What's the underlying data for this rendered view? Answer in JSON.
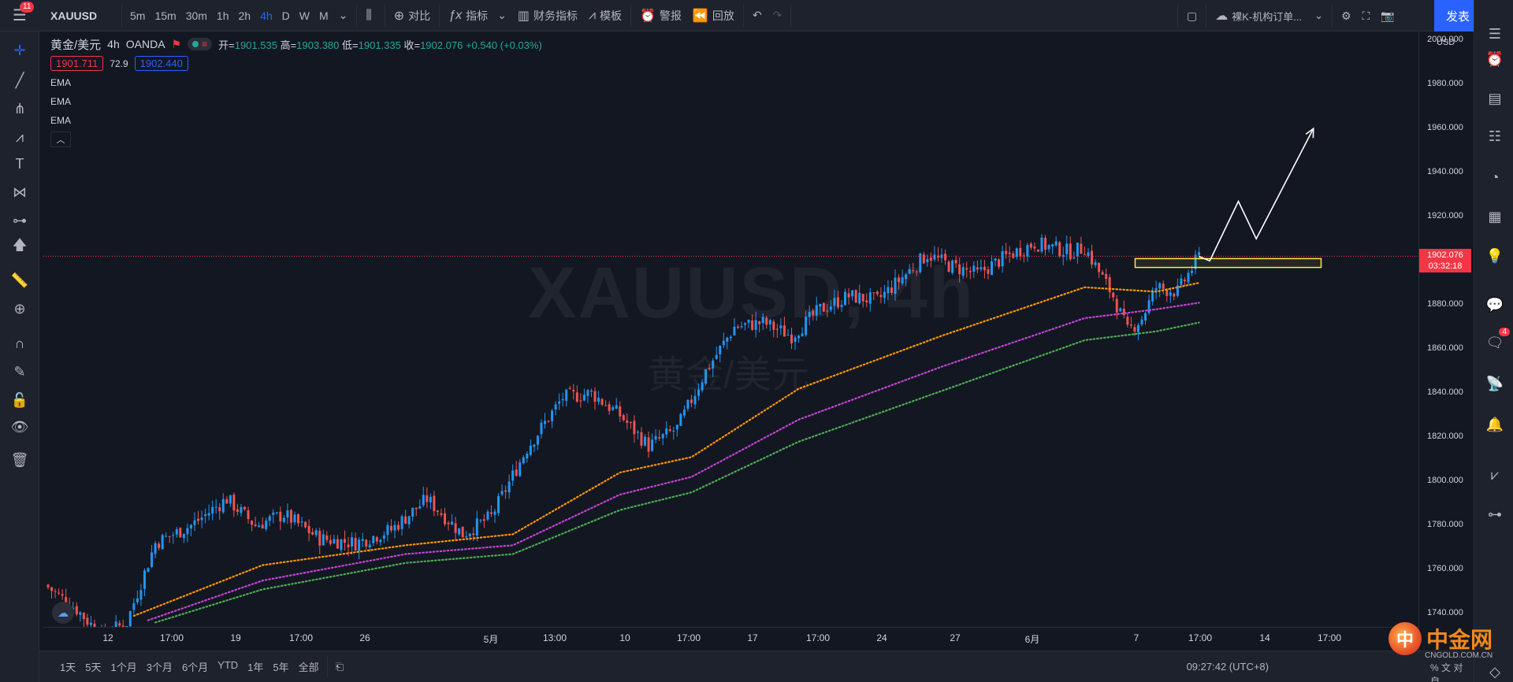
{
  "top_bar": {
    "menu_badge": "11",
    "symbol": "XAUUSD",
    "intervals": [
      "5m",
      "15m",
      "30m",
      "1h",
      "2h",
      "4h",
      "D",
      "W",
      "M"
    ],
    "active_interval": "4h",
    "compare_label": "对比",
    "indicators_label": "指标",
    "financials_label": "财务指标",
    "templates_label": "模板",
    "alert_label": "警报",
    "replay_label": "回放",
    "template_select": "裸K-机构订单...",
    "publish_label": "发表"
  },
  "legend": {
    "symbol_full": "黄金/美元",
    "interval": "4h",
    "broker": "OANDA",
    "open_key": "开=",
    "open": "1901.535",
    "high_key": "高=",
    "high": "1903.380",
    "low_key": "低=",
    "low": "1901.335",
    "close_key": "收=",
    "close": "1902.076",
    "change": "+0.540 (+0.03%)",
    "bid": "1901.711",
    "spread": "72.9",
    "ask": "1902.440",
    "ema_labels": [
      "EMA",
      "EMA",
      "EMA"
    ]
  },
  "watermark": {
    "line1": "XAUUSD, 4h",
    "line2": "黄金/美元"
  },
  "price_axis": {
    "currency": "USD",
    "labels": [
      "2000.000",
      "1980.000",
      "1960.000",
      "1940.000",
      "1920.000",
      "1900.000",
      "1880.000",
      "1860.000",
      "1840.000",
      "1820.000",
      "1800.000",
      "1780.000",
      "1760.000",
      "1740.000"
    ],
    "last_price": "1902.076",
    "countdown": "03:32:18"
  },
  "time_axis": {
    "labels": [
      "12",
      "17:00",
      "19",
      "17:00",
      "26",
      "5月",
      "13:00",
      "10",
      "17:00",
      "17",
      "17:00",
      "24",
      "27",
      "6月",
      "7",
      "17:00",
      "14",
      "17:00"
    ]
  },
  "bottom_bar": {
    "ranges": [
      "1天",
      "5天",
      "1个月",
      "3个月",
      "6个月",
      "YTD",
      "1年",
      "5年",
      "全部"
    ],
    "clock": "09:27:42 (UTC+8)",
    "tail": "% 文 对 自"
  },
  "brand": {
    "mark": "中",
    "name": "中金网",
    "sub": "CNGOLD.COM.CN"
  },
  "right_bar": {
    "badge": "4"
  },
  "colors": {
    "up": "#2196f3",
    "down": "#ef5350",
    "ema_fast": "#ff9800",
    "ema_mid": "#c844d8",
    "ema_slow": "#4caf50",
    "zone": "#ffeb3b",
    "last_price": "#f23645"
  },
  "chart_data": {
    "type": "candlestick",
    "title": "XAUUSD, 4h",
    "ylabel": "USD",
    "ylim": [
      1734,
      2004
    ],
    "x_ticks": [
      "12",
      "17:00",
      "19",
      "17:00",
      "26",
      "5月",
      "13:00",
      "10",
      "17:00",
      "17",
      "17:00",
      "24",
      "27",
      "6月",
      "7",
      "17:00",
      "14",
      "17:00"
    ],
    "close_anchors": [
      {
        "i": 0,
        "c": 1752
      },
      {
        "i": 8,
        "c": 1742
      },
      {
        "i": 15,
        "c": 1730
      },
      {
        "i": 22,
        "c": 1736
      },
      {
        "i": 30,
        "c": 1772
      },
      {
        "i": 40,
        "c": 1780
      },
      {
        "i": 50,
        "c": 1792
      },
      {
        "i": 58,
        "c": 1780
      },
      {
        "i": 66,
        "c": 1785
      },
      {
        "i": 76,
        "c": 1774
      },
      {
        "i": 86,
        "c": 1772
      },
      {
        "i": 96,
        "c": 1778
      },
      {
        "i": 106,
        "c": 1792
      },
      {
        "i": 116,
        "c": 1776
      },
      {
        "i": 124,
        "c": 1784
      },
      {
        "i": 134,
        "c": 1815
      },
      {
        "i": 144,
        "c": 1838
      },
      {
        "i": 152,
        "c": 1840
      },
      {
        "i": 160,
        "c": 1830
      },
      {
        "i": 168,
        "c": 1816
      },
      {
        "i": 176,
        "c": 1824
      },
      {
        "i": 184,
        "c": 1850
      },
      {
        "i": 192,
        "c": 1870
      },
      {
        "i": 200,
        "c": 1872
      },
      {
        "i": 208,
        "c": 1866
      },
      {
        "i": 216,
        "c": 1878
      },
      {
        "i": 224,
        "c": 1884
      },
      {
        "i": 232,
        "c": 1882
      },
      {
        "i": 240,
        "c": 1894
      },
      {
        "i": 246,
        "c": 1903
      },
      {
        "i": 252,
        "c": 1898
      },
      {
        "i": 260,
        "c": 1894
      },
      {
        "i": 268,
        "c": 1902
      },
      {
        "i": 276,
        "c": 1908
      },
      {
        "i": 286,
        "c": 1904
      },
      {
        "i": 290,
        "c": 1906
      },
      {
        "i": 298,
        "c": 1884
      },
      {
        "i": 302,
        "c": 1868
      },
      {
        "i": 306,
        "c": 1874
      },
      {
        "i": 310,
        "c": 1888
      },
      {
        "i": 316,
        "c": 1886
      },
      {
        "i": 322,
        "c": 1902
      }
    ],
    "series": [
      {
        "name": "EMA",
        "anchors": [
          {
            "i": 24,
            "c": 1739
          },
          {
            "i": 60,
            "c": 1762
          },
          {
            "i": 100,
            "c": 1771
          },
          {
            "i": 130,
            "c": 1776
          },
          {
            "i": 160,
            "c": 1804
          },
          {
            "i": 180,
            "c": 1811
          },
          {
            "i": 210,
            "c": 1842
          },
          {
            "i": 250,
            "c": 1866
          },
          {
            "i": 290,
            "c": 1888
          },
          {
            "i": 310,
            "c": 1886
          },
          {
            "i": 322,
            "c": 1890
          }
        ]
      },
      {
        "name": "EMA",
        "anchors": [
          {
            "i": 28,
            "c": 1737
          },
          {
            "i": 60,
            "c": 1755
          },
          {
            "i": 100,
            "c": 1767
          },
          {
            "i": 130,
            "c": 1771
          },
          {
            "i": 160,
            "c": 1794
          },
          {
            "i": 180,
            "c": 1802
          },
          {
            "i": 210,
            "c": 1828
          },
          {
            "i": 250,
            "c": 1852
          },
          {
            "i": 290,
            "c": 1874
          },
          {
            "i": 310,
            "c": 1878
          },
          {
            "i": 322,
            "c": 1881
          }
        ]
      },
      {
        "name": "EMA",
        "anchors": [
          {
            "i": 30,
            "c": 1736
          },
          {
            "i": 60,
            "c": 1751
          },
          {
            "i": 100,
            "c": 1763
          },
          {
            "i": 130,
            "c": 1767
          },
          {
            "i": 160,
            "c": 1787
          },
          {
            "i": 180,
            "c": 1795
          },
          {
            "i": 210,
            "c": 1818
          },
          {
            "i": 250,
            "c": 1841
          },
          {
            "i": 290,
            "c": 1864
          },
          {
            "i": 310,
            "c": 1868
          },
          {
            "i": 322,
            "c": 1872
          }
        ]
      }
    ],
    "last_price": 1902.076,
    "annotations": {
      "zone": {
        "from": 1897,
        "to": 1901
      },
      "arrow_path": [
        {
          "i": 322,
          "c": 1902
        },
        {
          "i": 325,
          "c": 1900
        },
        {
          "i": 333,
          "c": 1927
        },
        {
          "i": 338,
          "c": 1910
        },
        {
          "i": 354,
          "c": 1960
        }
      ]
    },
    "n_candles": 323
  }
}
